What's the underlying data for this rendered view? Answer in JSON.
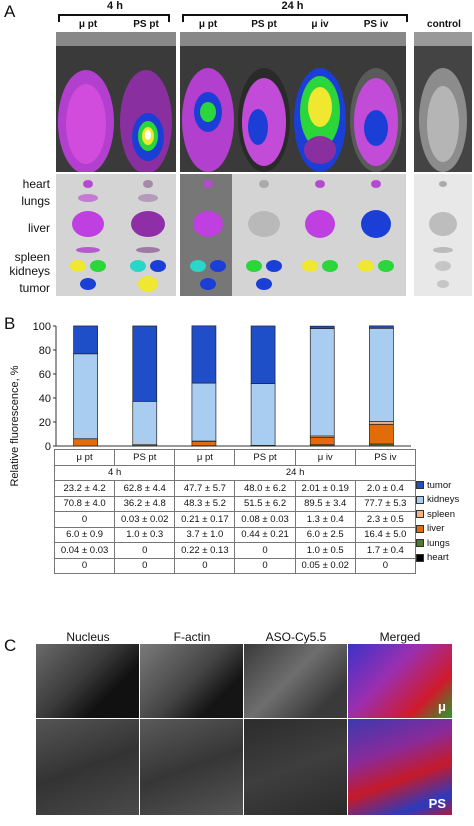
{
  "panels": {
    "a": "A",
    "b": "B",
    "c": "C"
  },
  "panel_a": {
    "time_points": [
      "4 h",
      "24 h"
    ],
    "columns": [
      "μ pt",
      "PS pt",
      "μ pt",
      "PS pt",
      "μ iv",
      "PS iv",
      "control"
    ],
    "organs": [
      "heart",
      "lungs",
      "liver",
      "spleen",
      "kidneys",
      "tumor"
    ]
  },
  "panel_c": {
    "channels": [
      "Nucleus",
      "F-actin",
      "ASO-Cy5.5",
      "Merged"
    ],
    "row_tags": [
      "μ",
      "PS"
    ]
  },
  "chart_data": {
    "type": "bar",
    "stacked": true,
    "ylabel": "Relative fluorescence, %",
    "ylim": [
      0,
      100
    ],
    "yticks": [
      0,
      20,
      40,
      60,
      80,
      100
    ],
    "grid": false,
    "categories": [
      "μ pt",
      "PS pt",
      "μ pt",
      "PS pt",
      "μ iv",
      "PS iv"
    ],
    "groups": [
      {
        "label": "4 h",
        "categories": [
          "μ pt",
          "PS pt"
        ]
      },
      {
        "label": "24 h",
        "categories": [
          "μ pt",
          "PS pt",
          "μ iv",
          "PS iv"
        ]
      }
    ],
    "series": [
      {
        "name": "heart",
        "color": "#000000",
        "values": [
          0,
          0,
          0,
          0,
          0.05,
          0
        ],
        "labels": [
          "0",
          "0",
          "0",
          "0",
          "0.05 ± 0.02",
          "0"
        ]
      },
      {
        "name": "lungs",
        "color": "#4f7a28",
        "values": [
          0.04,
          0,
          0.22,
          0,
          1.0,
          1.7
        ],
        "labels": [
          "0.04 ± 0.03",
          "0",
          "0.22 ± 0.13",
          "0",
          "1.0 ± 0.5",
          "1.7 ± 0.4"
        ]
      },
      {
        "name": "liver",
        "color": "#e36c0a",
        "values": [
          6.0,
          1.0,
          3.7,
          0.44,
          6.0,
          16.4
        ],
        "labels": [
          "6.0 ± 0.9",
          "1.0 ± 0.3",
          "3.7 ± 1.0",
          "0.44 ± 0.21",
          "6.0 ± 2.5",
          "16.4 ± 5.0"
        ]
      },
      {
        "name": "spleen",
        "color": "#f4b183",
        "values": [
          0,
          0.03,
          0.21,
          0.08,
          1.3,
          2.3
        ],
        "labels": [
          "0",
          "0.03 ± 0.02",
          "0.21 ± 0.17",
          "0.08 ± 0.03",
          "1.3 ± 0.4",
          "2.3 ± 0.5"
        ]
      },
      {
        "name": "kidneys",
        "color": "#a9cdf0",
        "values": [
          70.8,
          36.2,
          48.3,
          51.5,
          89.5,
          77.7
        ],
        "labels": [
          "70.8 ± 4.0",
          "36.2 ± 4.8",
          "48.3 ± 5.2",
          "51.5 ± 6.2",
          "89.5 ± 3.4",
          "77.7 ± 5.3"
        ]
      },
      {
        "name": "tumor",
        "color": "#1f4ec9",
        "values": [
          23.2,
          62.8,
          47.7,
          48.0,
          2.01,
          2.0
        ],
        "labels": [
          "23.2 ± 4.2",
          "62.8 ± 4.4",
          "47.7 ± 5.7",
          "48.0 ± 6.2",
          "2.01 ± 0.19",
          "2.0 ± 0.4"
        ]
      }
    ],
    "table_row_order": [
      "tumor",
      "kidneys",
      "spleen",
      "liver",
      "lungs",
      "heart"
    ]
  },
  "colors": {
    "tumor": "#1f4ec9",
    "kidneys": "#a9cdf0",
    "spleen": "#f4b183",
    "liver": "#e36c0a",
    "lungs": "#4f7a28",
    "heart": "#000000"
  }
}
